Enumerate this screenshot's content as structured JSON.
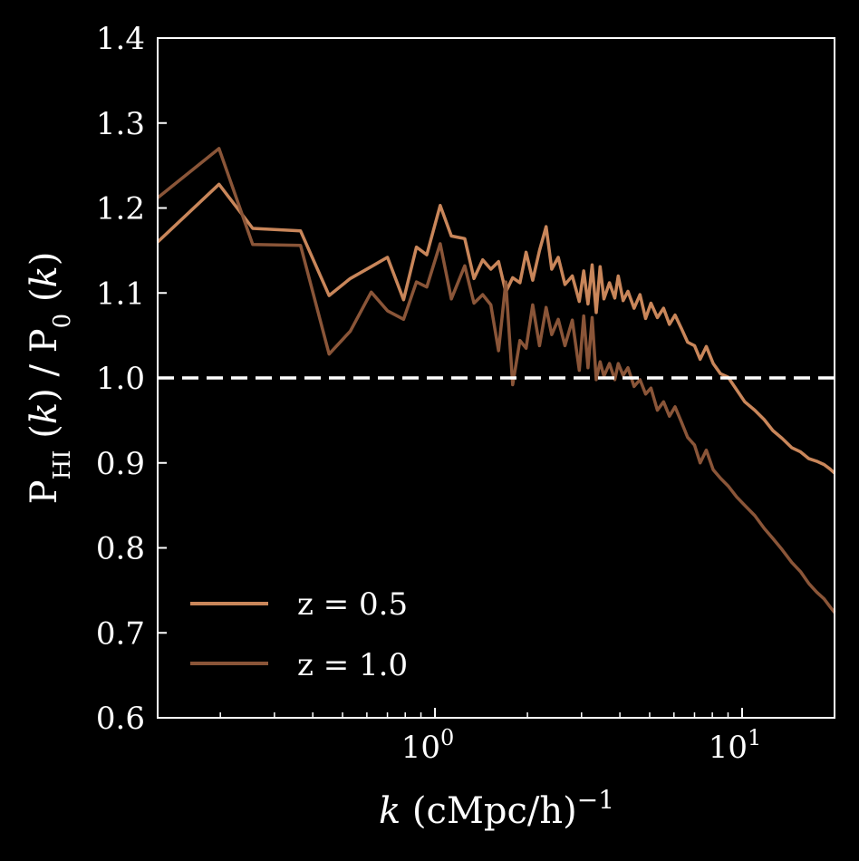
{
  "chart_data": {
    "type": "line",
    "xscale": "log",
    "xlim": [
      0.125,
      20
    ],
    "ylim": [
      0.6,
      1.4
    ],
    "xlabel": {
      "italic": "k",
      "rest": " (cMpc/h)",
      "sup": "−1"
    },
    "ylabel": {
      "p1": "P",
      "sub1": "HI",
      "mid1": " (",
      "k1": "k",
      "mid2": ") / P",
      "sub2": "0",
      "mid3": " (",
      "k2": "k",
      "end": ")"
    },
    "yticks": [
      0.6,
      0.7,
      0.8,
      0.9,
      1.0,
      1.1,
      1.2,
      1.3,
      1.4
    ],
    "ytick_labels": [
      "0.6",
      "0.7",
      "0.8",
      "0.9",
      "1.0",
      "1.1",
      "1.2",
      "1.3",
      "1.4"
    ],
    "xticks": [
      1,
      10
    ],
    "xtick_labels": [
      {
        "base": "10",
        "exp": "0"
      },
      {
        "base": "10",
        "exp": "1"
      }
    ],
    "reference_line": {
      "y": 1.0,
      "color": "#ffffff",
      "style": "dashed"
    },
    "legend": {
      "placement": "lower-left"
    },
    "series": [
      {
        "name": "z = 0.5",
        "color": "#c9865a",
        "points": [
          [
            0.125,
            1.16
          ],
          [
            0.198,
            1.228
          ],
          [
            0.255,
            1.176
          ],
          [
            0.365,
            1.173
          ],
          [
            0.452,
            1.097
          ],
          [
            0.53,
            1.117
          ],
          [
            0.62,
            1.131
          ],
          [
            0.7,
            1.142
          ],
          [
            0.79,
            1.092
          ],
          [
            0.87,
            1.154
          ],
          [
            0.94,
            1.145
          ],
          [
            1.04,
            1.203
          ],
          [
            1.13,
            1.167
          ],
          [
            1.25,
            1.164
          ],
          [
            1.34,
            1.117
          ],
          [
            1.43,
            1.139
          ],
          [
            1.52,
            1.128
          ],
          [
            1.61,
            1.137
          ],
          [
            1.7,
            1.101
          ],
          [
            1.79,
            1.118
          ],
          [
            1.89,
            1.112
          ],
          [
            1.98,
            1.148
          ],
          [
            2.08,
            1.115
          ],
          [
            2.19,
            1.15
          ],
          [
            2.3,
            1.178
          ],
          [
            2.4,
            1.128
          ],
          [
            2.52,
            1.142
          ],
          [
            2.65,
            1.11
          ],
          [
            2.8,
            1.12
          ],
          [
            2.95,
            1.09
          ],
          [
            3.05,
            1.126
          ],
          [
            3.15,
            1.087
          ],
          [
            3.25,
            1.133
          ],
          [
            3.35,
            1.077
          ],
          [
            3.45,
            1.131
          ],
          [
            3.55,
            1.093
          ],
          [
            3.7,
            1.112
          ],
          [
            3.85,
            1.094
          ],
          [
            3.95,
            1.12
          ],
          [
            4.1,
            1.091
          ],
          [
            4.25,
            1.102
          ],
          [
            4.45,
            1.082
          ],
          [
            4.65,
            1.098
          ],
          [
            4.85,
            1.07
          ],
          [
            5.05,
            1.088
          ],
          [
            5.3,
            1.071
          ],
          [
            5.55,
            1.082
          ],
          [
            5.8,
            1.063
          ],
          [
            6.05,
            1.074
          ],
          [
            6.35,
            1.058
          ],
          [
            6.65,
            1.042
          ],
          [
            7.0,
            1.038
          ],
          [
            7.3,
            1.022
          ],
          [
            7.65,
            1.037
          ],
          [
            8.05,
            1.017
          ],
          [
            8.5,
            1.005
          ],
          [
            9.0,
            1.001
          ],
          [
            9.6,
            0.986
          ],
          [
            10.2,
            0.972
          ],
          [
            11.0,
            0.962
          ],
          [
            11.8,
            0.951
          ],
          [
            12.6,
            0.938
          ],
          [
            13.5,
            0.929
          ],
          [
            14.5,
            0.918
          ],
          [
            15.5,
            0.913
          ],
          [
            16.5,
            0.905
          ],
          [
            17.5,
            0.902
          ],
          [
            18.5,
            0.898
          ],
          [
            19.3,
            0.893
          ],
          [
            20.0,
            0.888
          ]
        ]
      },
      {
        "name": "z = 1.0",
        "color": "#8a5538",
        "points": [
          [
            0.125,
            1.212
          ],
          [
            0.198,
            1.27
          ],
          [
            0.255,
            1.157
          ],
          [
            0.365,
            1.156
          ],
          [
            0.452,
            1.028
          ],
          [
            0.53,
            1.055
          ],
          [
            0.62,
            1.101
          ],
          [
            0.7,
            1.079
          ],
          [
            0.79,
            1.069
          ],
          [
            0.87,
            1.113
          ],
          [
            0.94,
            1.107
          ],
          [
            1.04,
            1.158
          ],
          [
            1.13,
            1.093
          ],
          [
            1.25,
            1.132
          ],
          [
            1.34,
            1.088
          ],
          [
            1.43,
            1.098
          ],
          [
            1.52,
            1.086
          ],
          [
            1.61,
            1.032
          ],
          [
            1.7,
            1.113
          ],
          [
            1.79,
            0.992
          ],
          [
            1.89,
            1.044
          ],
          [
            1.98,
            1.035
          ],
          [
            2.08,
            1.086
          ],
          [
            2.19,
            1.038
          ],
          [
            2.3,
            1.083
          ],
          [
            2.4,
            1.051
          ],
          [
            2.52,
            1.069
          ],
          [
            2.65,
            1.038
          ],
          [
            2.8,
            1.068
          ],
          [
            2.95,
            1.009
          ],
          [
            3.05,
            1.073
          ],
          [
            3.15,
            1.012
          ],
          [
            3.25,
            1.071
          ],
          [
            3.35,
            0.998
          ],
          [
            3.45,
            1.019
          ],
          [
            3.55,
            1.002
          ],
          [
            3.7,
            1.017
          ],
          [
            3.85,
            0.998
          ],
          [
            3.95,
            1.017
          ],
          [
            4.1,
            1.003
          ],
          [
            4.25,
            1.012
          ],
          [
            4.45,
            0.99
          ],
          [
            4.65,
            0.998
          ],
          [
            4.85,
            0.981
          ],
          [
            5.05,
            0.988
          ],
          [
            5.3,
            0.962
          ],
          [
            5.55,
            0.972
          ],
          [
            5.8,
            0.955
          ],
          [
            6.05,
            0.966
          ],
          [
            6.35,
            0.948
          ],
          [
            6.65,
            0.93
          ],
          [
            7.0,
            0.921
          ],
          [
            7.3,
            0.9
          ],
          [
            7.65,
            0.915
          ],
          [
            8.05,
            0.892
          ],
          [
            8.5,
            0.882
          ],
          [
            9.0,
            0.873
          ],
          [
            9.6,
            0.86
          ],
          [
            10.2,
            0.85
          ],
          [
            11.0,
            0.838
          ],
          [
            11.8,
            0.823
          ],
          [
            12.6,
            0.811
          ],
          [
            13.5,
            0.798
          ],
          [
            14.5,
            0.783
          ],
          [
            15.5,
            0.772
          ],
          [
            16.5,
            0.758
          ],
          [
            17.5,
            0.748
          ],
          [
            18.5,
            0.74
          ],
          [
            19.3,
            0.731
          ],
          [
            20.0,
            0.724
          ]
        ]
      }
    ]
  }
}
